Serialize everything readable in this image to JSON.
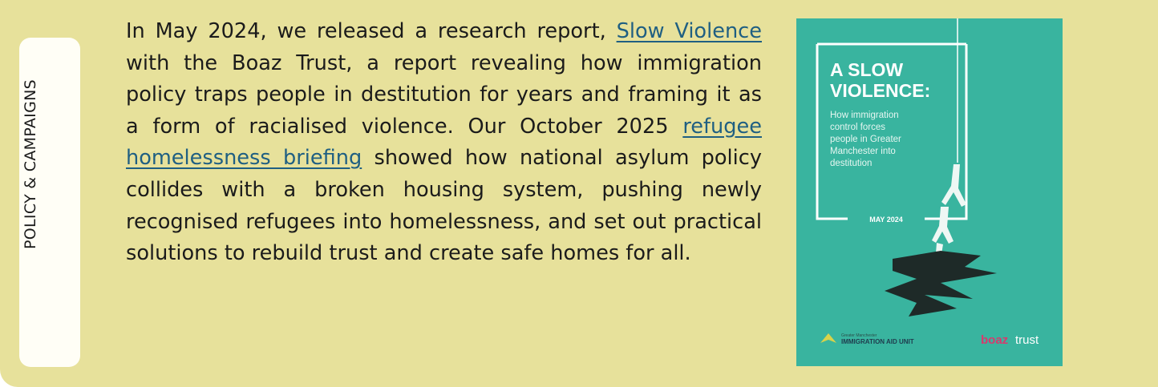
{
  "sidebar_label": "POLICY & CAMPAIGNS",
  "paragraph": [
    "In May 2024, we released a research report,",
    "Slow Violence",
    "with the Boaz Trust, a report revealing how immigration policy traps people in destitution for years and framing it as a form of racialised violence. Our October 2025",
    "refugee homelessness briefing",
    "showed how national asylum policy collides with a broken housing system, pushing newly recognised refugees into homelessness, and set out practical solutions to rebuild trust and create safe homes for all."
  ],
  "cover": {
    "title_line_1": "A SLOW",
    "title_line_2": "VIOLENCE:",
    "subtitle": [
      "How immigration",
      "control forces",
      "people in Greater",
      "Manchester into",
      "destitution"
    ],
    "date": "MAY 2024",
    "logo_1_small": "Greater Manchester",
    "logo_1": "IMMIGRATION AID UNIT",
    "logo_2_a": "boaz",
    "logo_2_b": "trust"
  }
}
